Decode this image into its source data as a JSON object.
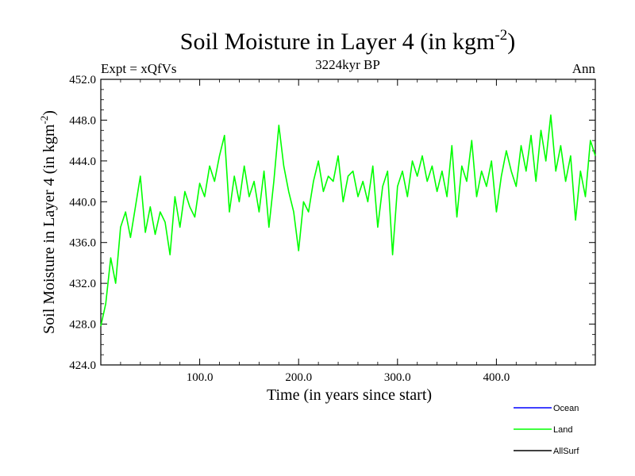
{
  "chart_data": {
    "type": "line",
    "title": "Soil Moisture in Layer 4 (in kgm",
    "title_sup": "-2",
    "title_close": ")",
    "subtitle_left": "Expt = xQfVs",
    "subtitle_center": "3224kyr BP",
    "subtitle_right": "Ann",
    "ylabel": "Soil Moisture in Layer 4 (in kgm",
    "ylabel_sup": "-2",
    "ylabel_close": ")",
    "xlabel": "Time (in years since start)",
    "xlim": [
      0,
      500
    ],
    "ylim": [
      424,
      452
    ],
    "x_ticks": [
      100,
      200,
      300,
      400
    ],
    "x_tick_labels": [
      "100.0",
      "200.0",
      "300.0",
      "400.0"
    ],
    "y_ticks": [
      424,
      428,
      432,
      436,
      440,
      444,
      448,
      452
    ],
    "y_tick_labels": [
      "424.0",
      "428.0",
      "432.0",
      "436.0",
      "440.0",
      "444.0",
      "448.0",
      "452.0"
    ],
    "legend_position": "bottom-right",
    "legend": [
      {
        "name": "Ocean",
        "color": "#0000ff"
      },
      {
        "name": "Land",
        "color": "#00ff00"
      },
      {
        "name": "AllSurf",
        "color": "#000000"
      }
    ],
    "series": [
      {
        "name": "Land",
        "color": "#00ff00",
        "x": [
          0,
          5,
          10,
          15,
          20,
          25,
          30,
          35,
          40,
          45,
          50,
          55,
          60,
          65,
          70,
          75,
          80,
          85,
          90,
          95,
          100,
          105,
          110,
          115,
          120,
          125,
          130,
          135,
          140,
          145,
          150,
          155,
          160,
          165,
          170,
          175,
          180,
          185,
          190,
          195,
          200,
          205,
          210,
          215,
          220,
          225,
          230,
          235,
          240,
          245,
          250,
          255,
          260,
          265,
          270,
          275,
          280,
          285,
          290,
          295,
          300,
          305,
          310,
          315,
          320,
          325,
          330,
          335,
          340,
          345,
          350,
          355,
          360,
          365,
          370,
          375,
          380,
          385,
          390,
          395,
          400,
          405,
          410,
          415,
          420,
          425,
          430,
          435,
          440,
          445,
          450,
          455,
          460,
          465,
          470,
          475,
          480,
          485,
          490,
          495,
          500
        ],
        "values": [
          427.8,
          430.0,
          434.5,
          432.0,
          437.5,
          439.0,
          436.5,
          439.5,
          442.5,
          437.0,
          439.5,
          436.8,
          439.0,
          438.0,
          434.8,
          440.5,
          437.5,
          441.0,
          439.5,
          438.5,
          441.8,
          440.5,
          443.5,
          442.0,
          444.5,
          446.5,
          439.0,
          442.5,
          440.0,
          443.5,
          440.5,
          442.0,
          439.0,
          443.0,
          437.5,
          442.0,
          447.5,
          443.5,
          441.0,
          439.0,
          435.2,
          440.0,
          439.0,
          442.0,
          444.0,
          441.0,
          442.5,
          442.0,
          444.5,
          440.0,
          442.5,
          443.0,
          440.5,
          442.0,
          440.0,
          443.5,
          437.5,
          441.5,
          443.0,
          434.8,
          441.5,
          443.0,
          440.5,
          444.0,
          442.5,
          444.5,
          442.0,
          443.5,
          441.0,
          443.0,
          440.5,
          445.5,
          438.5,
          443.5,
          442.0,
          446.0,
          440.5,
          443.0,
          441.5,
          444.0,
          439.0,
          442.5,
          445.0,
          443.0,
          441.5,
          445.5,
          443.0,
          446.5,
          442.0,
          447.0,
          444.0,
          448.5,
          443.0,
          445.5,
          442.0,
          444.5,
          438.2,
          443.0,
          440.5,
          446.0,
          444.5
        ]
      }
    ]
  }
}
